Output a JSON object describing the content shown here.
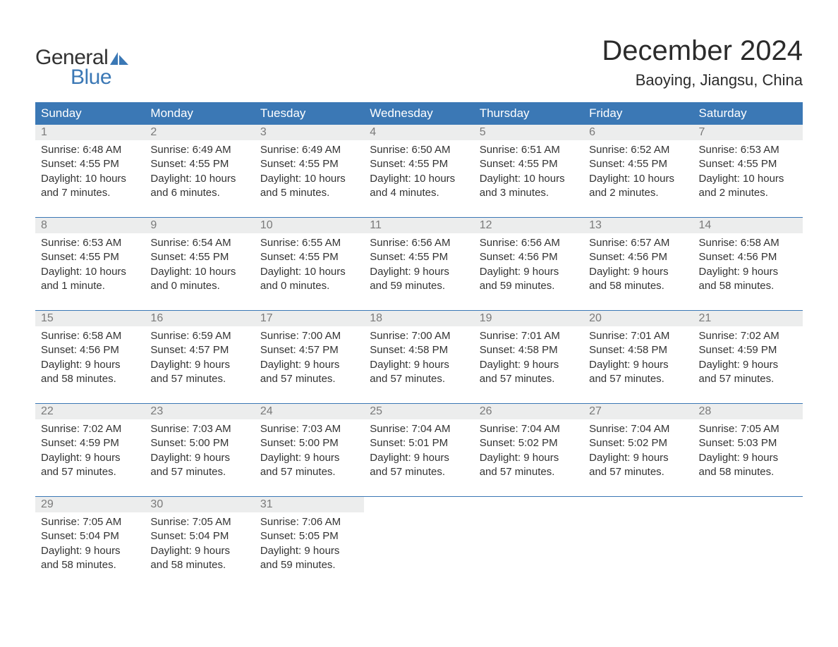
{
  "brand": {
    "part1": "General",
    "part2": "Blue",
    "color1": "#333333",
    "color2": "#3b78b5"
  },
  "title": "December 2024",
  "location": "Baoying, Jiangsu, China",
  "weekdays": [
    "Sunday",
    "Monday",
    "Tuesday",
    "Wednesday",
    "Thursday",
    "Friday",
    "Saturday"
  ],
  "colors": {
    "header_bg": "#3b78b5",
    "header_text": "#ffffff",
    "daynum_bg": "#eceded",
    "daynum_text": "#7a7a7a",
    "border": "#3b78b5",
    "body_text": "#333333",
    "background": "#ffffff"
  },
  "fonts": {
    "title_size": 40,
    "location_size": 22,
    "weekday_size": 17,
    "daynum_size": 16,
    "body_size": 15
  },
  "weeks": [
    [
      {
        "n": "1",
        "sunrise": "6:48 AM",
        "sunset": "4:55 PM",
        "dl1": "Daylight: 10 hours",
        "dl2": "and 7 minutes."
      },
      {
        "n": "2",
        "sunrise": "6:49 AM",
        "sunset": "4:55 PM",
        "dl1": "Daylight: 10 hours",
        "dl2": "and 6 minutes."
      },
      {
        "n": "3",
        "sunrise": "6:49 AM",
        "sunset": "4:55 PM",
        "dl1": "Daylight: 10 hours",
        "dl2": "and 5 minutes."
      },
      {
        "n": "4",
        "sunrise": "6:50 AM",
        "sunset": "4:55 PM",
        "dl1": "Daylight: 10 hours",
        "dl2": "and 4 minutes."
      },
      {
        "n": "5",
        "sunrise": "6:51 AM",
        "sunset": "4:55 PM",
        "dl1": "Daylight: 10 hours",
        "dl2": "and 3 minutes."
      },
      {
        "n": "6",
        "sunrise": "6:52 AM",
        "sunset": "4:55 PM",
        "dl1": "Daylight: 10 hours",
        "dl2": "and 2 minutes."
      },
      {
        "n": "7",
        "sunrise": "6:53 AM",
        "sunset": "4:55 PM",
        "dl1": "Daylight: 10 hours",
        "dl2": "and 2 minutes."
      }
    ],
    [
      {
        "n": "8",
        "sunrise": "6:53 AM",
        "sunset": "4:55 PM",
        "dl1": "Daylight: 10 hours",
        "dl2": "and 1 minute."
      },
      {
        "n": "9",
        "sunrise": "6:54 AM",
        "sunset": "4:55 PM",
        "dl1": "Daylight: 10 hours",
        "dl2": "and 0 minutes."
      },
      {
        "n": "10",
        "sunrise": "6:55 AM",
        "sunset": "4:55 PM",
        "dl1": "Daylight: 10 hours",
        "dl2": "and 0 minutes."
      },
      {
        "n": "11",
        "sunrise": "6:56 AM",
        "sunset": "4:55 PM",
        "dl1": "Daylight: 9 hours",
        "dl2": "and 59 minutes."
      },
      {
        "n": "12",
        "sunrise": "6:56 AM",
        "sunset": "4:56 PM",
        "dl1": "Daylight: 9 hours",
        "dl2": "and 59 minutes."
      },
      {
        "n": "13",
        "sunrise": "6:57 AM",
        "sunset": "4:56 PM",
        "dl1": "Daylight: 9 hours",
        "dl2": "and 58 minutes."
      },
      {
        "n": "14",
        "sunrise": "6:58 AM",
        "sunset": "4:56 PM",
        "dl1": "Daylight: 9 hours",
        "dl2": "and 58 minutes."
      }
    ],
    [
      {
        "n": "15",
        "sunrise": "6:58 AM",
        "sunset": "4:56 PM",
        "dl1": "Daylight: 9 hours",
        "dl2": "and 58 minutes."
      },
      {
        "n": "16",
        "sunrise": "6:59 AM",
        "sunset": "4:57 PM",
        "dl1": "Daylight: 9 hours",
        "dl2": "and 57 minutes."
      },
      {
        "n": "17",
        "sunrise": "7:00 AM",
        "sunset": "4:57 PM",
        "dl1": "Daylight: 9 hours",
        "dl2": "and 57 minutes."
      },
      {
        "n": "18",
        "sunrise": "7:00 AM",
        "sunset": "4:58 PM",
        "dl1": "Daylight: 9 hours",
        "dl2": "and 57 minutes."
      },
      {
        "n": "19",
        "sunrise": "7:01 AM",
        "sunset": "4:58 PM",
        "dl1": "Daylight: 9 hours",
        "dl2": "and 57 minutes."
      },
      {
        "n": "20",
        "sunrise": "7:01 AM",
        "sunset": "4:58 PM",
        "dl1": "Daylight: 9 hours",
        "dl2": "and 57 minutes."
      },
      {
        "n": "21",
        "sunrise": "7:02 AM",
        "sunset": "4:59 PM",
        "dl1": "Daylight: 9 hours",
        "dl2": "and 57 minutes."
      }
    ],
    [
      {
        "n": "22",
        "sunrise": "7:02 AM",
        "sunset": "4:59 PM",
        "dl1": "Daylight: 9 hours",
        "dl2": "and 57 minutes."
      },
      {
        "n": "23",
        "sunrise": "7:03 AM",
        "sunset": "5:00 PM",
        "dl1": "Daylight: 9 hours",
        "dl2": "and 57 minutes."
      },
      {
        "n": "24",
        "sunrise": "7:03 AM",
        "sunset": "5:00 PM",
        "dl1": "Daylight: 9 hours",
        "dl2": "and 57 minutes."
      },
      {
        "n": "25",
        "sunrise": "7:04 AM",
        "sunset": "5:01 PM",
        "dl1": "Daylight: 9 hours",
        "dl2": "and 57 minutes."
      },
      {
        "n": "26",
        "sunrise": "7:04 AM",
        "sunset": "5:02 PM",
        "dl1": "Daylight: 9 hours",
        "dl2": "and 57 minutes."
      },
      {
        "n": "27",
        "sunrise": "7:04 AM",
        "sunset": "5:02 PM",
        "dl1": "Daylight: 9 hours",
        "dl2": "and 57 minutes."
      },
      {
        "n": "28",
        "sunrise": "7:05 AM",
        "sunset": "5:03 PM",
        "dl1": "Daylight: 9 hours",
        "dl2": "and 58 minutes."
      }
    ],
    [
      {
        "n": "29",
        "sunrise": "7:05 AM",
        "sunset": "5:04 PM",
        "dl1": "Daylight: 9 hours",
        "dl2": "and 58 minutes."
      },
      {
        "n": "30",
        "sunrise": "7:05 AM",
        "sunset": "5:04 PM",
        "dl1": "Daylight: 9 hours",
        "dl2": "and 58 minutes."
      },
      {
        "n": "31",
        "sunrise": "7:06 AM",
        "sunset": "5:05 PM",
        "dl1": "Daylight: 9 hours",
        "dl2": "and 59 minutes."
      },
      null,
      null,
      null,
      null
    ]
  ],
  "labels": {
    "sunrise_prefix": "Sunrise: ",
    "sunset_prefix": "Sunset: "
  }
}
